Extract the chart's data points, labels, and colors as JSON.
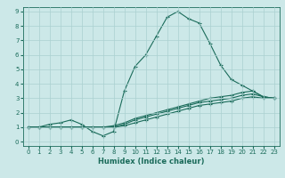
{
  "xlabel": "Humidex (Indice chaleur)",
  "bg_color": "#cce8e8",
  "line_color": "#1a6b5a",
  "grid_color": "#aad0d0",
  "xmin": 0,
  "xmax": 23,
  "ymin": 0,
  "ymax": 9,
  "x_main": [
    0,
    1,
    2,
    3,
    4,
    5,
    6,
    7,
    8,
    9,
    10,
    11,
    12,
    13,
    14,
    15,
    16,
    17,
    18,
    19,
    20,
    21,
    22,
    23
  ],
  "y_main": [
    1,
    1,
    1.2,
    1.3,
    1.5,
    1.2,
    0.7,
    0.4,
    0.7,
    3.5,
    5.2,
    6.0,
    7.3,
    8.6,
    9.0,
    8.5,
    8.2,
    6.8,
    5.3,
    4.3,
    3.9,
    3.5,
    3.1,
    3.0
  ],
  "x_line1": [
    0,
    1,
    2,
    3,
    4,
    5,
    6,
    7,
    8,
    9,
    10,
    11,
    12,
    13,
    14,
    15,
    16,
    17,
    18,
    19,
    20,
    21,
    22,
    23
  ],
  "y_line1": [
    1,
    1,
    1,
    1,
    1,
    1,
    1,
    1,
    1.1,
    1.3,
    1.6,
    1.8,
    2.0,
    2.2,
    2.4,
    2.6,
    2.8,
    3.0,
    3.1,
    3.2,
    3.4,
    3.5,
    3.1,
    3.0
  ],
  "x_line2": [
    0,
    1,
    2,
    3,
    4,
    5,
    6,
    7,
    8,
    9,
    10,
    11,
    12,
    13,
    14,
    15,
    16,
    17,
    18,
    19,
    20,
    21,
    22,
    23
  ],
  "y_line2": [
    1,
    1,
    1,
    1,
    1,
    1,
    1,
    1,
    1.0,
    1.2,
    1.5,
    1.7,
    1.9,
    2.1,
    2.3,
    2.5,
    2.7,
    2.8,
    2.9,
    3.0,
    3.2,
    3.3,
    3.1,
    3.0
  ],
  "x_line3": [
    0,
    1,
    2,
    3,
    4,
    5,
    6,
    7,
    8,
    9,
    10,
    11,
    12,
    13,
    14,
    15,
    16,
    17,
    18,
    19,
    20,
    21,
    22,
    23
  ],
  "y_line3": [
    1,
    1,
    1,
    1,
    1,
    1,
    1,
    1,
    1.0,
    1.1,
    1.3,
    1.5,
    1.7,
    1.9,
    2.1,
    2.3,
    2.5,
    2.6,
    2.7,
    2.8,
    3.0,
    3.1,
    3.0,
    3.0
  ],
  "tick_fontsize": 5,
  "xlabel_fontsize": 6,
  "marker_size": 3,
  "line_width": 0.8
}
